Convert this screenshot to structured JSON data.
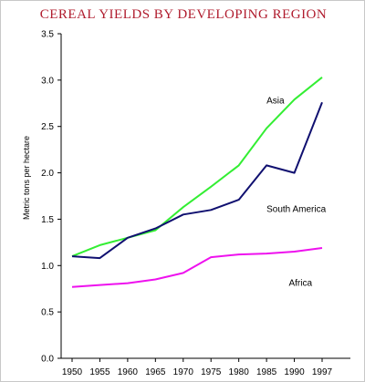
{
  "colors": {
    "title": "#b01c2e",
    "asia": "#33ee33",
    "south_america": "#101070",
    "africa": "#ee11ee",
    "axis": "#000000"
  },
  "chart_data": {
    "type": "line",
    "title": "CEREAL YIELDS BY DEVELOPING REGION",
    "ylabel": "Metric tons per hectare",
    "xlabel": "",
    "ylim": [
      0,
      3.5
    ],
    "yticks": [
      "0.0",
      "0.5",
      "1.0",
      "1.5",
      "2.0",
      "2.5",
      "3.0",
      "3.5"
    ],
    "categories": [
      "1950",
      "1955",
      "1960",
      "1965",
      "1970",
      "1975",
      "1980",
      "1985",
      "1990",
      "1997"
    ],
    "grid": false,
    "legend": "inline labels",
    "series": [
      {
        "name": "Asia",
        "color": "#33ee33",
        "values": [
          1.1,
          1.22,
          1.3,
          1.38,
          1.63,
          1.85,
          2.08,
          2.48,
          2.79,
          3.03
        ]
      },
      {
        "name": "South America",
        "color": "#101070",
        "values": [
          1.1,
          1.08,
          1.3,
          1.4,
          1.55,
          1.6,
          1.71,
          2.08,
          2.0,
          2.76
        ]
      },
      {
        "name": "Africa",
        "color": "#ee11ee",
        "values": [
          0.77,
          0.79,
          0.81,
          0.85,
          0.92,
          1.09,
          1.12,
          1.13,
          1.15,
          1.19
        ]
      }
    ]
  }
}
